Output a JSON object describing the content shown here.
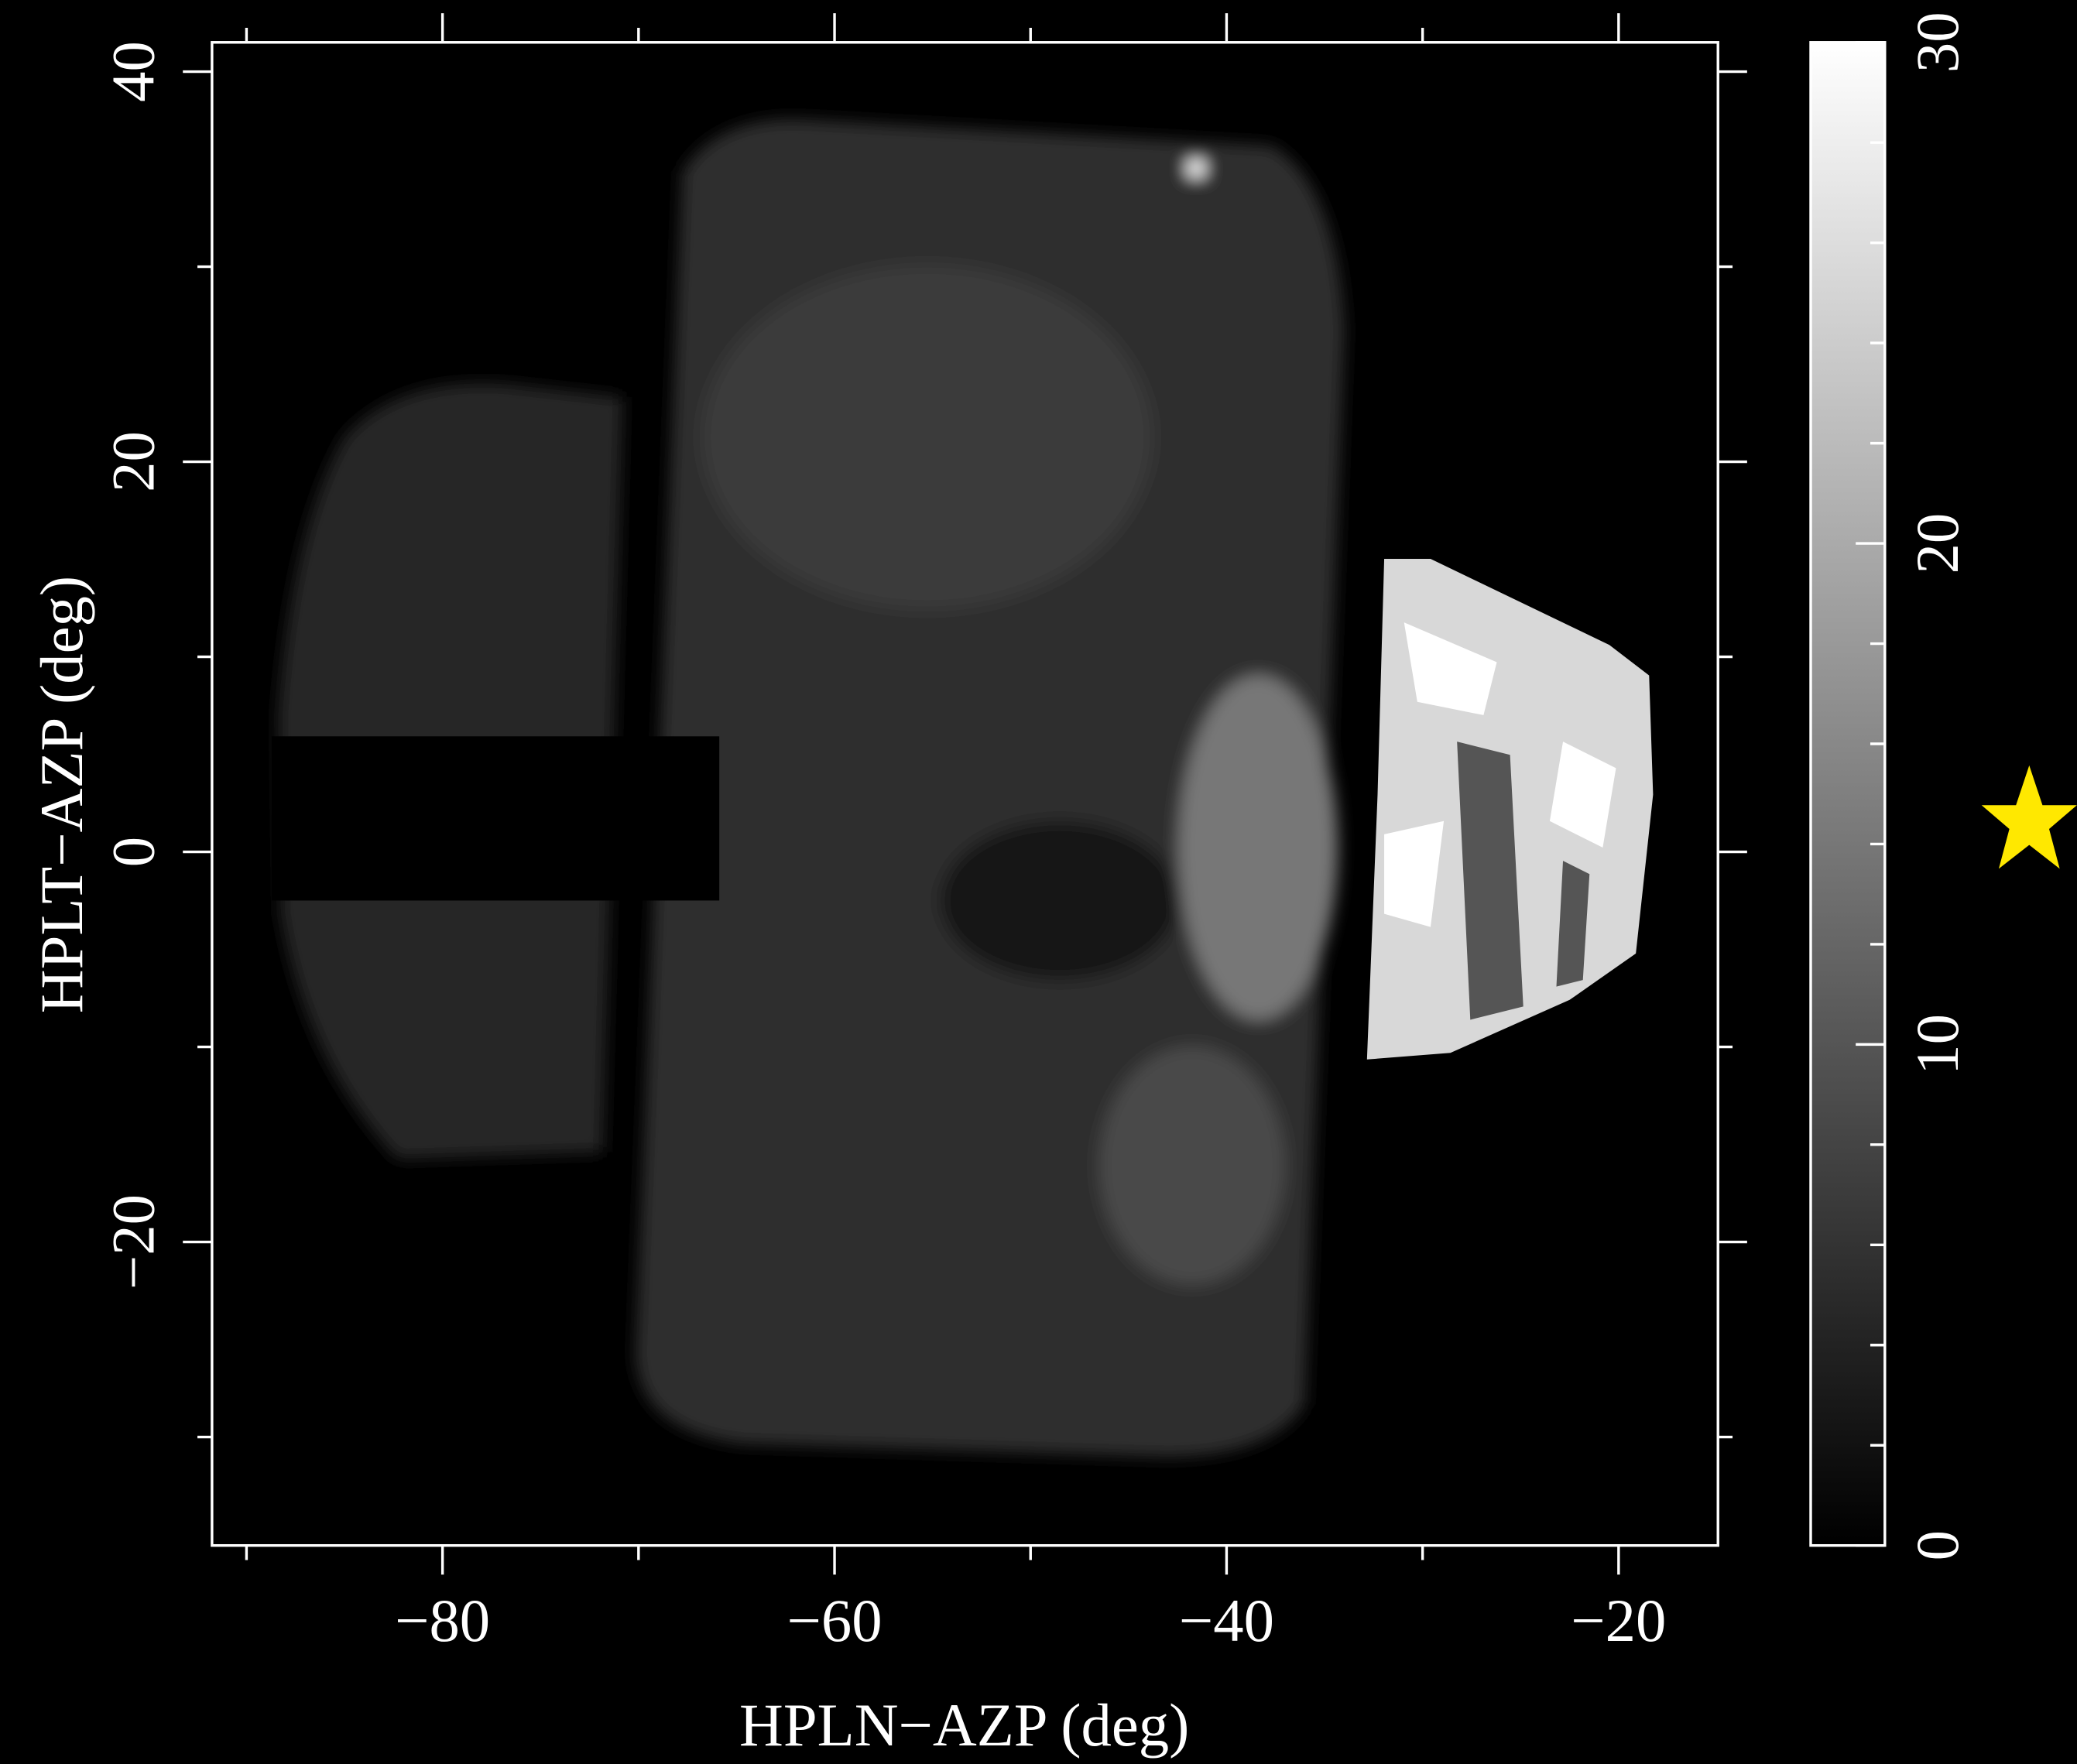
{
  "chart_data": {
    "type": "image",
    "xlabel": "HPLN−AZP (deg)",
    "ylabel": "HPLT−AZP (deg)",
    "xlim": [
      -91.76,
      -14.93
    ],
    "xticks": [
      {
        "value": -80,
        "label": "−80"
      },
      {
        "value": -60,
        "label": "−60"
      },
      {
        "value": -40,
        "label": "−40"
      },
      {
        "value": -20,
        "label": "−20"
      }
    ],
    "xminor_ticks": [
      -90,
      -70,
      -50,
      -30
    ],
    "ylim": [
      -35.56,
      41.5
    ],
    "yticks": [
      {
        "value": -20,
        "label": "−20"
      },
      0,
      20,
      40
    ],
    "yminor_ticks": [
      -30,
      -10,
      10,
      30
    ],
    "colormap": "gray",
    "clim": [
      0,
      30
    ],
    "cticks": [
      0,
      10,
      20,
      30
    ],
    "cminor_ticks": [
      2,
      4,
      6,
      8,
      12,
      14,
      16,
      18,
      22,
      24,
      26,
      28
    ]
  }
}
